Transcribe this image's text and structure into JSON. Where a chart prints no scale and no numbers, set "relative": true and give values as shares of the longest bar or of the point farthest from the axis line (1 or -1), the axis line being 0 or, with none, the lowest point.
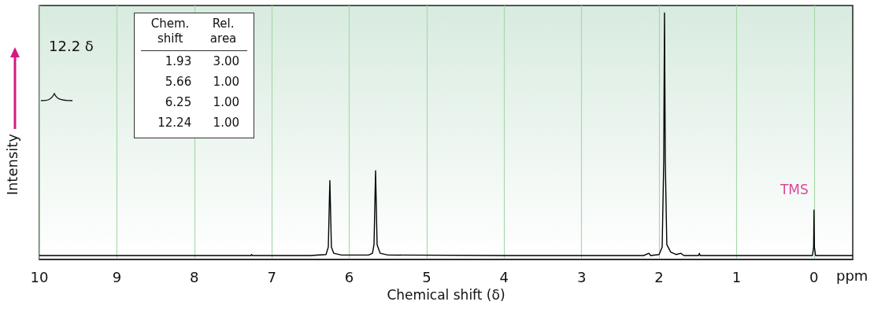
{
  "chart_data": {
    "type": "line",
    "relative": true,
    "xlabel": "Chemical shift (δ)",
    "ylabel": "Intensity",
    "xlim": [
      10,
      -0.5
    ],
    "xticks": [
      10,
      9,
      8,
      7,
      6,
      5,
      4,
      3,
      2,
      1,
      0
    ],
    "grid": "x",
    "marker": "none",
    "line_style": "solid",
    "x": [
      10,
      7.27,
      7.26,
      7.25,
      6.5,
      6.3,
      6.27,
      6.25,
      6.23,
      6.2,
      6.1,
      5.75,
      5.7,
      5.68,
      5.66,
      5.64,
      5.6,
      5.5,
      4.0,
      2.2,
      2.13,
      2.11,
      2.0,
      1.96,
      1.94,
      1.93,
      1.92,
      1.9,
      1.85,
      1.78,
      1.72,
      1.68,
      1.49,
      1.48,
      1.47,
      0.02,
      0.005,
      0,
      -0.005,
      -0.02,
      -0.5
    ],
    "series": [
      {
        "color": "#000000",
        "values": [
          0.016,
          0.016,
          0.02,
          0.016,
          0.016,
          0.02,
          0.05,
          0.32,
          0.05,
          0.025,
          0.018,
          0.018,
          0.025,
          0.06,
          0.36,
          0.06,
          0.025,
          0.018,
          0.016,
          0.016,
          0.025,
          0.016,
          0.02,
          0.05,
          0.4,
          1,
          0.4,
          0.06,
          0.03,
          0.02,
          0.025,
          0.016,
          0.016,
          0.025,
          0.016,
          0.016,
          0.05,
          0.2,
          0.05,
          0.016,
          0.016
        ]
      }
    ],
    "annotations": [
      "Chem. shift",
      "Rel. area",
      "1.93",
      "3.00",
      "5.66",
      "1.00",
      "6.25",
      "1.00",
      "12.24",
      "1.00",
      "12.2 δ",
      "ppm",
      {
        "text": "TMS",
        "x": 0,
        "y": 0.2
      }
    ]
  }
}
